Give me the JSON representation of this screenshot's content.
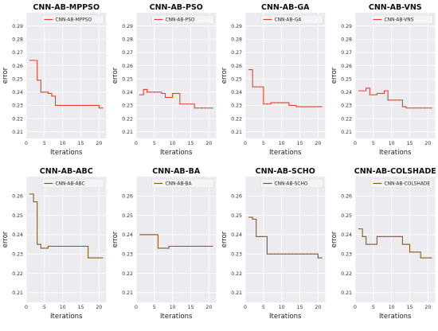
{
  "chart_data": [
    {
      "type": "line",
      "title": "CNN-AB-MPPSO",
      "xlabel": "Iterations",
      "ylabel": "error",
      "xlim": [
        0,
        22
      ],
      "ylim": [
        0.205,
        0.3
      ],
      "xticks": [
        0,
        5,
        10,
        15,
        20
      ],
      "yticks": [
        0.21,
        0.22,
        0.23,
        0.24,
        0.25,
        0.26,
        0.27,
        0.28,
        0.29
      ],
      "grid": true,
      "legend_position": "top-right",
      "series": [
        {
          "name": "CNN-AB-MPPSO",
          "color": "#e8402a",
          "x": [
            1,
            2,
            3,
            4,
            5,
            6,
            7,
            8,
            9,
            10,
            11,
            12,
            13,
            14,
            15,
            16,
            17,
            18,
            19,
            20,
            21
          ],
          "y": [
            0.264,
            0.264,
            0.249,
            0.24,
            0.24,
            0.239,
            0.237,
            0.23,
            0.23,
            0.23,
            0.23,
            0.23,
            0.23,
            0.23,
            0.23,
            0.23,
            0.23,
            0.23,
            0.23,
            0.228,
            0.228
          ]
        }
      ]
    },
    {
      "type": "line",
      "title": "CNN-AB-PSO",
      "xlabel": "Iterations",
      "ylabel": "error",
      "xlim": [
        0,
        22
      ],
      "ylim": [
        0.205,
        0.3
      ],
      "xticks": [
        0,
        5,
        10,
        15,
        20
      ],
      "yticks": [
        0.21,
        0.22,
        0.23,
        0.24,
        0.25,
        0.26,
        0.27,
        0.28,
        0.29
      ],
      "grid": true,
      "legend_position": "top-right",
      "series": [
        {
          "name": "CNN-AB-PSO",
          "color": "#e8402a",
          "x": [
            1,
            2,
            3,
            4,
            5,
            6,
            7,
            8,
            9,
            10,
            11,
            12,
            13,
            14,
            15,
            16,
            17,
            18,
            19,
            20,
            21
          ],
          "y": [
            0.238,
            0.242,
            0.24,
            0.24,
            0.24,
            0.24,
            0.239,
            0.236,
            0.236,
            0.239,
            0.239,
            0.231,
            0.231,
            0.231,
            0.231,
            0.228,
            0.228,
            0.228,
            0.228,
            0.228,
            0.228
          ]
        }
      ]
    },
    {
      "type": "line",
      "title": "CNN-AB-GA",
      "xlabel": "Iterations",
      "ylabel": "error",
      "xlim": [
        0,
        22
      ],
      "ylim": [
        0.205,
        0.3
      ],
      "xticks": [
        0,
        5,
        10,
        15,
        20
      ],
      "yticks": [
        0.21,
        0.22,
        0.23,
        0.24,
        0.25,
        0.26,
        0.27,
        0.28,
        0.29
      ],
      "grid": true,
      "legend_position": "top-right",
      "series": [
        {
          "name": "CNN-AB-GA",
          "color": "#e8402a",
          "x": [
            1,
            2,
            3,
            4,
            5,
            6,
            7,
            8,
            9,
            10,
            11,
            12,
            13,
            14,
            15,
            16,
            17,
            18,
            19,
            20,
            21
          ],
          "y": [
            0.257,
            0.244,
            0.244,
            0.244,
            0.231,
            0.231,
            0.232,
            0.232,
            0.232,
            0.232,
            0.232,
            0.23,
            0.23,
            0.229,
            0.229,
            0.229,
            0.229,
            0.229,
            0.229,
            0.229,
            0.229
          ]
        }
      ]
    },
    {
      "type": "line",
      "title": "CNN-AB-VNS",
      "xlabel": "Iterations",
      "ylabel": "error",
      "xlim": [
        0,
        22
      ],
      "ylim": [
        0.205,
        0.3
      ],
      "xticks": [
        0,
        5,
        10,
        15,
        20
      ],
      "yticks": [
        0.21,
        0.22,
        0.23,
        0.24,
        0.25,
        0.26,
        0.27,
        0.28,
        0.29
      ],
      "grid": true,
      "legend_position": "top-right",
      "series": [
        {
          "name": "CNN-AB-VNS",
          "color": "#e8402a",
          "x": [
            1,
            2,
            3,
            4,
            5,
            6,
            7,
            8,
            9,
            10,
            11,
            12,
            13,
            14,
            15,
            16,
            17,
            18,
            19,
            20,
            21
          ],
          "y": [
            0.241,
            0.241,
            0.243,
            0.238,
            0.238,
            0.239,
            0.239,
            0.241,
            0.234,
            0.234,
            0.234,
            0.234,
            0.229,
            0.228,
            0.228,
            0.228,
            0.228,
            0.228,
            0.228,
            0.228,
            0.228
          ]
        }
      ]
    },
    {
      "type": "line",
      "title": "CNN-AB-ABC",
      "xlabel": "Iterations",
      "ylabel": "error",
      "xlim": [
        0,
        22
      ],
      "ylim": [
        0.205,
        0.27
      ],
      "xticks": [
        0,
        5,
        10,
        15,
        20
      ],
      "yticks": [
        0.21,
        0.22,
        0.23,
        0.24,
        0.25,
        0.26
      ],
      "grid": true,
      "legend_position": "top-right",
      "series": [
        {
          "name": "CNN-AB-ABC",
          "color": "#8a5a1c",
          "x": [
            1,
            2,
            3,
            4,
            5,
            6,
            7,
            8,
            9,
            10,
            11,
            12,
            13,
            14,
            15,
            16,
            17,
            18,
            19,
            20,
            21
          ],
          "y": [
            0.261,
            0.257,
            0.235,
            0.233,
            0.233,
            0.234,
            0.234,
            0.234,
            0.234,
            0.234,
            0.234,
            0.234,
            0.234,
            0.234,
            0.234,
            0.234,
            0.228,
            0.228,
            0.228,
            0.228,
            0.228
          ]
        }
      ]
    },
    {
      "type": "line",
      "title": "CNN-AB-BA",
      "xlabel": "Iterations",
      "ylabel": "error",
      "xlim": [
        0,
        22
      ],
      "ylim": [
        0.205,
        0.27
      ],
      "xticks": [
        0,
        5,
        10,
        15,
        20
      ],
      "yticks": [
        0.21,
        0.22,
        0.23,
        0.24,
        0.25,
        0.26
      ],
      "grid": true,
      "legend_position": "top-right",
      "series": [
        {
          "name": "CNN-AB-BA",
          "color": "#8a5a1c",
          "x": [
            1,
            2,
            3,
            4,
            5,
            6,
            7,
            8,
            9,
            10,
            11,
            12,
            13,
            14,
            15,
            16,
            17,
            18,
            19,
            20,
            21
          ],
          "y": [
            0.24,
            0.24,
            0.24,
            0.24,
            0.24,
            0.233,
            0.233,
            0.233,
            0.234,
            0.234,
            0.234,
            0.234,
            0.234,
            0.234,
            0.234,
            0.234,
            0.234,
            0.234,
            0.234,
            0.234,
            0.234
          ]
        }
      ]
    },
    {
      "type": "line",
      "title": "CNN-AB-SCHO",
      "xlabel": "Iterations",
      "ylabel": "error",
      "xlim": [
        0,
        22
      ],
      "ylim": [
        0.205,
        0.27
      ],
      "xticks": [
        0,
        5,
        10,
        15,
        20
      ],
      "yticks": [
        0.21,
        0.22,
        0.23,
        0.24,
        0.25,
        0.26
      ],
      "grid": true,
      "legend_position": "top-right",
      "series": [
        {
          "name": "CNN-AB-SCHO",
          "color": "#8a5a1c",
          "x": [
            1,
            2,
            3,
            4,
            5,
            6,
            7,
            8,
            9,
            10,
            11,
            12,
            13,
            14,
            15,
            16,
            17,
            18,
            19,
            20,
            21
          ],
          "y": [
            0.249,
            0.248,
            0.239,
            0.239,
            0.239,
            0.23,
            0.23,
            0.23,
            0.23,
            0.23,
            0.23,
            0.23,
            0.23,
            0.23,
            0.23,
            0.23,
            0.23,
            0.23,
            0.23,
            0.228,
            0.228
          ]
        }
      ]
    },
    {
      "type": "line",
      "title": "CNN-AB-COLSHADE",
      "xlabel": "Iterations",
      "ylabel": "error",
      "xlim": [
        0,
        22
      ],
      "ylim": [
        0.205,
        0.27
      ],
      "xticks": [
        0,
        5,
        10,
        15,
        20
      ],
      "yticks": [
        0.21,
        0.22,
        0.23,
        0.24,
        0.25,
        0.26
      ],
      "grid": true,
      "legend_position": "top-right",
      "series": [
        {
          "name": "CNN-AB-COLSHADE",
          "color": "#8a5a1c",
          "x": [
            1,
            2,
            3,
            4,
            5,
            6,
            7,
            8,
            9,
            10,
            11,
            12,
            13,
            14,
            15,
            16,
            17,
            18,
            19,
            20,
            21
          ],
          "y": [
            0.243,
            0.239,
            0.235,
            0.235,
            0.235,
            0.239,
            0.239,
            0.239,
            0.239,
            0.239,
            0.239,
            0.239,
            0.235,
            0.235,
            0.231,
            0.231,
            0.231,
            0.228,
            0.228,
            0.228,
            0.228
          ]
        }
      ]
    }
  ]
}
